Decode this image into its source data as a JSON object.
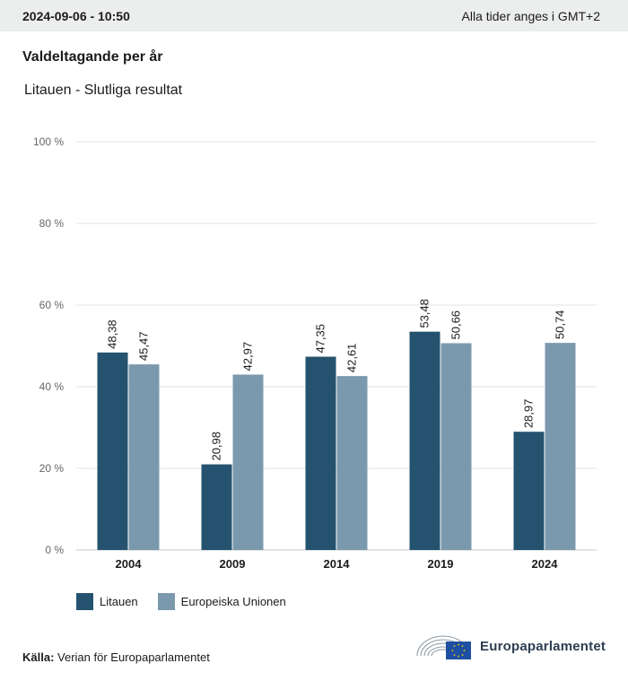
{
  "header": {
    "timestamp": "2024-09-06 - 10:50",
    "timezone_note": "Alla tider anges i GMT+2"
  },
  "title": "Valdeltagande per år",
  "subtitle": "Litauen - Slutliga resultat",
  "colors": {
    "series1": "#25536f",
    "series2": "#7b99ad",
    "grid": "#e3e3e3",
    "axis": "#c8c8c8"
  },
  "chart_data": {
    "type": "bar",
    "categories": [
      "2004",
      "2009",
      "2014",
      "2019",
      "2024"
    ],
    "series": [
      {
        "name": "Litauen",
        "values": [
          48.38,
          20.98,
          47.35,
          53.48,
          28.97
        ],
        "labels": [
          "48,38",
          "20,98",
          "47,35",
          "53,48",
          "28,97"
        ]
      },
      {
        "name": "Europeiska Unionen",
        "values": [
          45.47,
          42.97,
          42.61,
          50.66,
          50.74
        ],
        "labels": [
          "45,47",
          "42,97",
          "42,61",
          "50,66",
          "50,74"
        ]
      }
    ],
    "ylim": [
      0,
      100
    ],
    "yticks": [
      0,
      20,
      40,
      60,
      80,
      100
    ],
    "ytick_labels": [
      "0 %",
      "20 %",
      "40 %",
      "60 %",
      "80 %",
      "100 %"
    ],
    "grid": true,
    "legend_position": "bottom-left"
  },
  "legend": [
    {
      "label": "Litauen"
    },
    {
      "label": "Europeiska Unionen"
    }
  ],
  "source": {
    "label": "Källa:",
    "text": "Verian för Europaparlamentet"
  },
  "logo": {
    "text": "Europaparlamentet",
    "icon": "european-parliament-logo-icon"
  }
}
